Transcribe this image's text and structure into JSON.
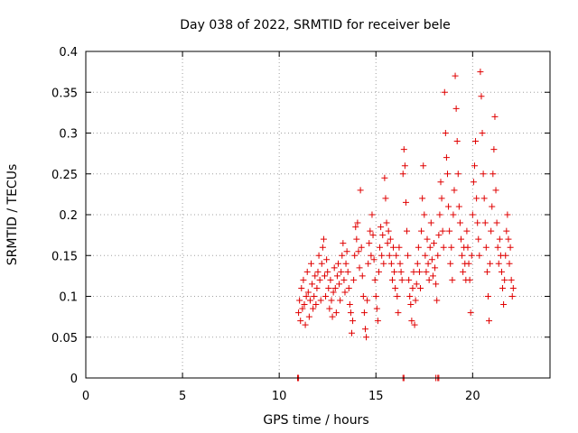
{
  "chart_data": {
    "type": "scatter",
    "title": "Day 038 of 2022, SRMTID for receiver bele",
    "xlabel": "GPS time / hours",
    "ylabel": "SRMTID / TECUs",
    "xlim": [
      0,
      24
    ],
    "ylim": [
      0,
      0.4
    ],
    "xticks": [
      0,
      5,
      10,
      15,
      20
    ],
    "xtick_labels": [
      "0",
      "5",
      "10",
      "15",
      "20"
    ],
    "yticks": [
      0,
      0.05,
      0.1,
      0.15,
      0.2,
      0.25,
      0.3,
      0.35,
      0.4
    ],
    "ytick_labels": [
      "0",
      "0.05",
      "0.1",
      "0.15",
      "0.2",
      "0.25",
      "0.3",
      "0.35",
      "0.4"
    ],
    "grid": true,
    "marker": "plus",
    "color": "#e00000",
    "series": [
      {
        "name": "SRMTID",
        "points": [
          [
            11.0,
            0.08
          ],
          [
            11.05,
            0.095
          ],
          [
            11.1,
            0.07
          ],
          [
            11.15,
            0.11
          ],
          [
            11.2,
            0.085
          ],
          [
            11.25,
            0.12
          ],
          [
            11.3,
            0.09
          ],
          [
            11.35,
            0.065
          ],
          [
            11.4,
            0.1
          ],
          [
            11.45,
            0.13
          ],
          [
            11.5,
            0.105
          ],
          [
            11.55,
            0.075
          ],
          [
            11.6,
            0.095
          ],
          [
            11.65,
            0.14
          ],
          [
            11.7,
            0.115
          ],
          [
            11.75,
            0.085
          ],
          [
            11.8,
            0.1
          ],
          [
            11.85,
            0.125
          ],
          [
            11.9,
            0.09
          ],
          [
            11.95,
            0.11
          ],
          [
            12.0,
            0.13
          ],
          [
            12.05,
            0.15
          ],
          [
            12.1,
            0.12
          ],
          [
            12.15,
            0.095
          ],
          [
            12.2,
            0.14
          ],
          [
            12.25,
            0.16
          ],
          [
            12.3,
            0.17
          ],
          [
            12.35,
            0.125
          ],
          [
            12.4,
            0.1
          ],
          [
            12.45,
            0.145
          ],
          [
            12.5,
            0.13
          ],
          [
            12.55,
            0.11
          ],
          [
            12.6,
            0.085
          ],
          [
            12.65,
            0.12
          ],
          [
            12.7,
            0.095
          ],
          [
            12.75,
            0.075
          ],
          [
            12.8,
            0.105
          ],
          [
            12.85,
            0.135
          ],
          [
            12.9,
            0.11
          ],
          [
            12.95,
            0.08
          ],
          [
            13.0,
            0.125
          ],
          [
            13.05,
            0.14
          ],
          [
            13.1,
            0.115
          ],
          [
            13.15,
            0.095
          ],
          [
            13.2,
            0.13
          ],
          [
            13.25,
            0.15
          ],
          [
            13.3,
            0.165
          ],
          [
            13.35,
            0.12
          ],
          [
            13.4,
            0.105
          ],
          [
            13.45,
            0.14
          ],
          [
            13.5,
            0.155
          ],
          [
            13.55,
            0.13
          ],
          [
            13.6,
            0.11
          ],
          [
            13.65,
            0.09
          ],
          [
            13.7,
            0.08
          ],
          [
            13.75,
            0.055
          ],
          [
            13.8,
            0.07
          ],
          [
            13.85,
            0.12
          ],
          [
            13.9,
            0.15
          ],
          [
            13.95,
            0.185
          ],
          [
            14.0,
            0.17
          ],
          [
            14.05,
            0.19
          ],
          [
            14.1,
            0.155
          ],
          [
            14.15,
            0.135
          ],
          [
            14.2,
            0.23
          ],
          [
            14.25,
            0.16
          ],
          [
            14.3,
            0.125
          ],
          [
            14.35,
            0.1
          ],
          [
            14.4,
            0.08
          ],
          [
            14.45,
            0.06
          ],
          [
            14.5,
            0.05
          ],
          [
            14.55,
            0.095
          ],
          [
            14.6,
            0.14
          ],
          [
            14.65,
            0.165
          ],
          [
            14.7,
            0.18
          ],
          [
            14.75,
            0.15
          ],
          [
            14.8,
            0.2
          ],
          [
            14.85,
            0.175
          ],
          [
            14.9,
            0.145
          ],
          [
            14.95,
            0.12
          ],
          [
            15.0,
            0.1
          ],
          [
            15.05,
            0.085
          ],
          [
            15.1,
            0.07
          ],
          [
            15.15,
            0.13
          ],
          [
            15.2,
            0.16
          ],
          [
            15.25,
            0.185
          ],
          [
            15.3,
            0.15
          ],
          [
            15.35,
            0.175
          ],
          [
            15.4,
            0.14
          ],
          [
            15.45,
            0.245
          ],
          [
            15.5,
            0.22
          ],
          [
            15.55,
            0.19
          ],
          [
            15.6,
            0.165
          ],
          [
            15.65,
            0.18
          ],
          [
            15.7,
            0.15
          ],
          [
            15.75,
            0.17
          ],
          [
            15.8,
            0.14
          ],
          [
            15.85,
            0.12
          ],
          [
            15.9,
            0.16
          ],
          [
            15.95,
            0.13
          ],
          [
            16.0,
            0.11
          ],
          [
            16.05,
            0.15
          ],
          [
            16.1,
            0.1
          ],
          [
            16.15,
            0.08
          ],
          [
            16.2,
            0.16
          ],
          [
            16.25,
            0.14
          ],
          [
            16.3,
            0.13
          ],
          [
            16.35,
            0.12
          ],
          [
            16.4,
            0.25
          ],
          [
            16.45,
            0.28
          ],
          [
            16.5,
            0.26
          ],
          [
            16.55,
            0.215
          ],
          [
            16.6,
            0.18
          ],
          [
            16.65,
            0.15
          ],
          [
            16.7,
            0.12
          ],
          [
            16.75,
            0.1
          ],
          [
            16.8,
            0.09
          ],
          [
            16.85,
            0.07
          ],
          [
            16.9,
            0.11
          ],
          [
            16.95,
            0.13
          ],
          [
            17.0,
            0.065
          ],
          [
            17.05,
            0.095
          ],
          [
            17.1,
            0.115
          ],
          [
            17.15,
            0.14
          ],
          [
            17.2,
            0.16
          ],
          [
            17.25,
            0.13
          ],
          [
            17.3,
            0.11
          ],
          [
            17.35,
            0.18
          ],
          [
            17.4,
            0.22
          ],
          [
            17.45,
            0.26
          ],
          [
            17.5,
            0.2
          ],
          [
            17.55,
            0.15
          ],
          [
            17.6,
            0.13
          ],
          [
            17.65,
            0.17
          ],
          [
            17.7,
            0.14
          ],
          [
            17.75,
            0.12
          ],
          [
            17.8,
            0.16
          ],
          [
            17.85,
            0.19
          ],
          [
            17.9,
            0.145
          ],
          [
            17.95,
            0.125
          ],
          [
            18.0,
            0.165
          ],
          [
            18.05,
            0.135
          ],
          [
            18.1,
            0.115
          ],
          [
            18.15,
            0.095
          ],
          [
            18.2,
            0.15
          ],
          [
            18.25,
            0.175
          ],
          [
            18.3,
            0.2
          ],
          [
            18.35,
            0.24
          ],
          [
            18.4,
            0.22
          ],
          [
            18.45,
            0.18
          ],
          [
            18.5,
            0.16
          ],
          [
            18.55,
            0.35
          ],
          [
            18.6,
            0.3
          ],
          [
            18.65,
            0.27
          ],
          [
            18.7,
            0.25
          ],
          [
            18.75,
            0.21
          ],
          [
            18.8,
            0.18
          ],
          [
            18.85,
            0.14
          ],
          [
            18.9,
            0.16
          ],
          [
            18.95,
            0.12
          ],
          [
            19.0,
            0.2
          ],
          [
            19.05,
            0.23
          ],
          [
            19.1,
            0.37
          ],
          [
            19.15,
            0.33
          ],
          [
            19.2,
            0.29
          ],
          [
            19.25,
            0.25
          ],
          [
            19.3,
            0.21
          ],
          [
            19.35,
            0.19
          ],
          [
            19.4,
            0.17
          ],
          [
            19.45,
            0.15
          ],
          [
            19.5,
            0.13
          ],
          [
            19.55,
            0.16
          ],
          [
            19.6,
            0.14
          ],
          [
            19.65,
            0.12
          ],
          [
            19.7,
            0.18
          ],
          [
            19.75,
            0.16
          ],
          [
            19.8,
            0.14
          ],
          [
            19.85,
            0.12
          ],
          [
            19.9,
            0.08
          ],
          [
            19.95,
            0.15
          ],
          [
            20.0,
            0.2
          ],
          [
            20.05,
            0.24
          ],
          [
            20.1,
            0.26
          ],
          [
            20.15,
            0.29
          ],
          [
            20.2,
            0.22
          ],
          [
            20.25,
            0.19
          ],
          [
            20.3,
            0.17
          ],
          [
            20.35,
            0.15
          ],
          [
            20.4,
            0.375
          ],
          [
            20.45,
            0.345
          ],
          [
            20.5,
            0.3
          ],
          [
            20.55,
            0.25
          ],
          [
            20.6,
            0.22
          ],
          [
            20.65,
            0.19
          ],
          [
            20.7,
            0.16
          ],
          [
            20.75,
            0.13
          ],
          [
            20.8,
            0.1
          ],
          [
            20.85,
            0.07
          ],
          [
            20.9,
            0.14
          ],
          [
            20.95,
            0.18
          ],
          [
            21.0,
            0.21
          ],
          [
            21.05,
            0.25
          ],
          [
            21.1,
            0.28
          ],
          [
            21.15,
            0.32
          ],
          [
            21.2,
            0.23
          ],
          [
            21.25,
            0.19
          ],
          [
            21.3,
            0.16
          ],
          [
            21.35,
            0.14
          ],
          [
            21.4,
            0.17
          ],
          [
            21.45,
            0.15
          ],
          [
            21.5,
            0.13
          ],
          [
            21.55,
            0.11
          ],
          [
            21.6,
            0.09
          ],
          [
            21.65,
            0.12
          ],
          [
            21.7,
            0.15
          ],
          [
            21.75,
            0.18
          ],
          [
            21.8,
            0.2
          ],
          [
            21.85,
            0.17
          ],
          [
            21.9,
            0.14
          ],
          [
            21.95,
            0.16
          ],
          [
            22.0,
            0.12
          ],
          [
            22.05,
            0.1
          ],
          [
            22.1,
            0.11
          ],
          [
            10.95,
            0.0
          ],
          [
            11.0,
            0.0
          ],
          [
            16.4,
            0.0
          ],
          [
            16.45,
            0.0
          ],
          [
            18.1,
            0.0
          ],
          [
            18.2,
            0.0
          ],
          [
            18.25,
            0.0
          ]
        ]
      }
    ]
  }
}
